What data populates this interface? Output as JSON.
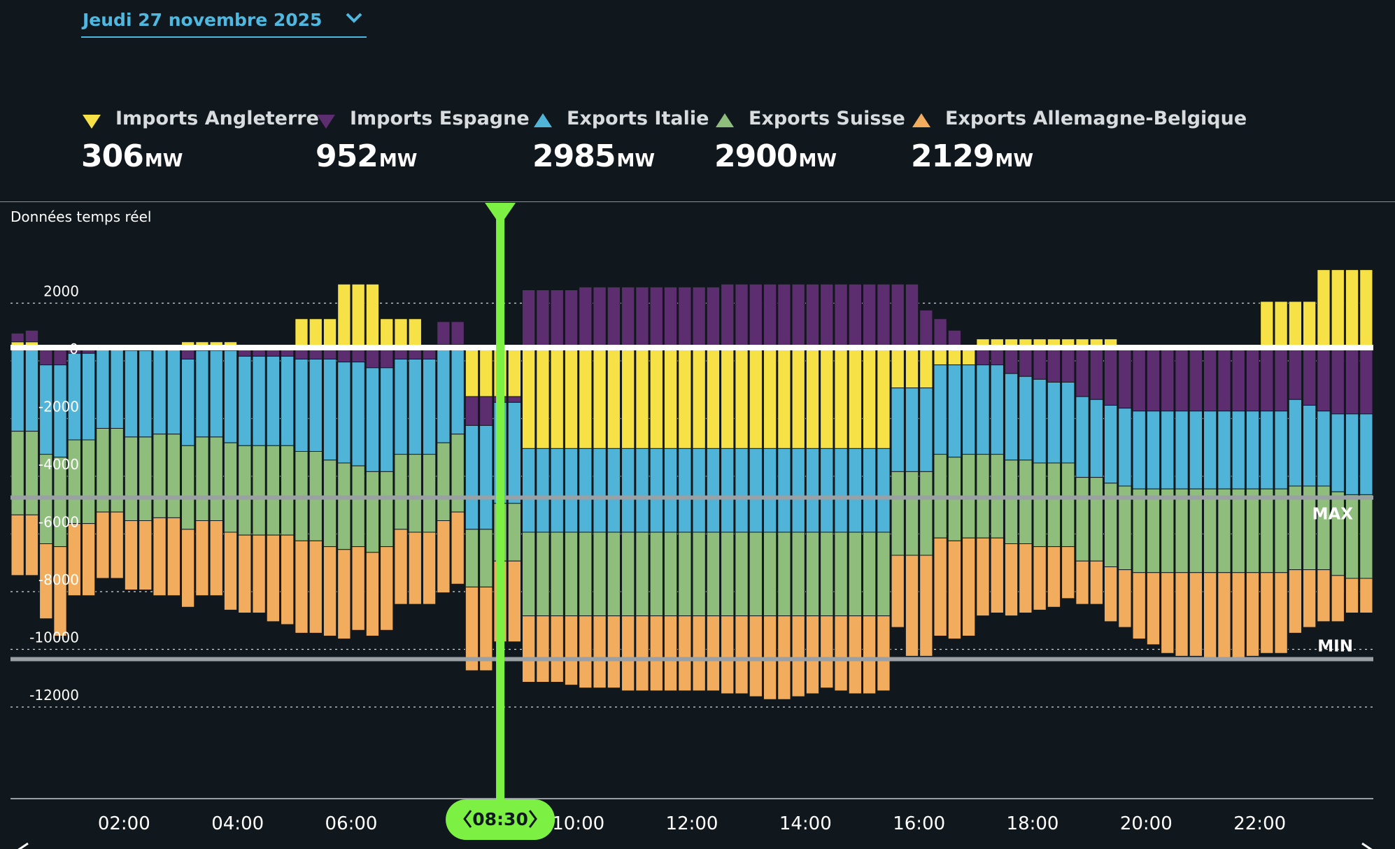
{
  "date_selector": {
    "label": "Jeudi 27 novembre 2025",
    "icon": "chevron-down-icon"
  },
  "legend": [
    {
      "name": "Imports Angleterre",
      "value": "306",
      "unit": "MW",
      "color": "#f6e146",
      "direction": "down"
    },
    {
      "name": "Imports Espagne",
      "value": "952",
      "unit": "MW",
      "color": "#5c2d6f",
      "direction": "down"
    },
    {
      "name": "Exports Italie",
      "value": "2985",
      "unit": "MW",
      "color": "#50b4d8",
      "direction": "up"
    },
    {
      "name": "Exports Suisse",
      "value": "2900",
      "unit": "MW",
      "color": "#8fbd7c",
      "direction": "up"
    },
    {
      "name": "Exports Allemagne-Belgique",
      "value": "2129",
      "unit": "MW",
      "color": "#f1ac5e",
      "direction": "up"
    }
  ],
  "realtime_label": "Données temps réel",
  "cursor": {
    "label": "08:30",
    "color": "#7cf144"
  },
  "chart_data": {
    "type": "bar",
    "stacked": true,
    "interval_minutes": 15,
    "bar_count": 96,
    "yticks": [
      2000,
      0,
      -2000,
      -4000,
      -6000,
      -8000,
      -10000,
      -12000
    ],
    "ylim": [
      -12500,
      2500
    ],
    "xticks": [
      "02:00",
      "04:00",
      "06:00",
      "10:00",
      "12:00",
      "14:00",
      "16:00",
      "18:00",
      "20:00",
      "22:00"
    ],
    "reference_lines": [
      {
        "label": "MAX",
        "value": -5200
      },
      {
        "label": "MIN",
        "value": -10800
      }
    ],
    "series": [
      {
        "name": "Imports Angleterre",
        "color": "#f6e146",
        "values": [
          200,
          200,
          100,
          0,
          0,
          0,
          0,
          0,
          0,
          0,
          0,
          0,
          200,
          200,
          200,
          200,
          0,
          0,
          0,
          0,
          1000,
          1000,
          1000,
          2200,
          2200,
          2200,
          1000,
          1000,
          1000,
          100,
          100,
          100,
          -1700,
          -1700,
          -1700,
          -1700,
          -3500,
          -3500,
          -3500,
          -3500,
          -3500,
          -3500,
          -3500,
          -3500,
          -3500,
          -3500,
          -3500,
          -3500,
          -3500,
          -3500,
          -3500,
          -3500,
          -3500,
          -3500,
          -3500,
          -3500,
          -3500,
          -3500,
          -3500,
          -3500,
          -3500,
          -3500,
          -1400,
          -1400,
          -1400,
          -600,
          -600,
          -600,
          300,
          300,
          300,
          300,
          300,
          300,
          300,
          300,
          300,
          300,
          100,
          100,
          100,
          100,
          0,
          0,
          0,
          0,
          0,
          0,
          1600,
          1600,
          1600,
          1600,
          2700,
          2700,
          2700,
          2700
        ]
      },
      {
        "name": "Imports Espagne",
        "color": "#5c2d6f",
        "values": [
          300,
          400,
          -600,
          -600,
          -200,
          -200,
          0,
          0,
          -100,
          -100,
          0,
          0,
          -400,
          -100,
          -100,
          -100,
          -300,
          -300,
          -300,
          -300,
          -400,
          -400,
          -400,
          -500,
          -500,
          -700,
          -700,
          -400,
          -400,
          -400,
          800,
          800,
          -1000,
          -1000,
          -200,
          -200,
          2000,
          2000,
          2000,
          2000,
          2100,
          2100,
          2100,
          2100,
          2100,
          2100,
          2100,
          2100,
          2100,
          2100,
          2200,
          2200,
          2200,
          2200,
          2200,
          2200,
          2200,
          2200,
          2200,
          2200,
          2200,
          2200,
          2200,
          2200,
          1300,
          1000,
          600,
          100,
          -600,
          -600,
          -900,
          -1000,
          -1100,
          -1200,
          -1200,
          -1700,
          -1800,
          -2000,
          -2100,
          -2200,
          -2200,
          -2200,
          -2200,
          -2200,
          -2200,
          -2200,
          -2200,
          -2200,
          -2200,
          -2200,
          -1800,
          -2000,
          -2200,
          -2300,
          -2300,
          -2300
        ]
      },
      {
        "name": "Exports Italie",
        "color": "#50b4d8",
        "values": [
          -2900,
          -2900,
          -3100,
          -3200,
          -3000,
          -3000,
          -2800,
          -2800,
          -3000,
          -3000,
          -3000,
          -3000,
          -3000,
          -3000,
          -3000,
          -3200,
          -3100,
          -3100,
          -3100,
          -3100,
          -3200,
          -3200,
          -3500,
          -3500,
          -3600,
          -3600,
          -3600,
          -3300,
          -3300,
          -3300,
          -3300,
          -3000,
          -3600,
          -3600,
          -3500,
          -3500,
          -2900,
          -2900,
          -2900,
          -2900,
          -2900,
          -2900,
          -2900,
          -2900,
          -2900,
          -2900,
          -2900,
          -2900,
          -2900,
          -2900,
          -2900,
          -2900,
          -2900,
          -2900,
          -2900,
          -2900,
          -2900,
          -2900,
          -2900,
          -2900,
          -2900,
          -2900,
          -2900,
          -2900,
          -2900,
          -3100,
          -3200,
          -3100,
          -3100,
          -3100,
          -3000,
          -2900,
          -2900,
          -2800,
          -2800,
          -2800,
          -2700,
          -2700,
          -2700,
          -2700,
          -2700,
          -2700,
          -2700,
          -2700,
          -2700,
          -2700,
          -2700,
          -2700,
          -2700,
          -2700,
          -3000,
          -2800,
          -2600,
          -2700,
          -2800,
          -2800
        ]
      },
      {
        "name": "Exports Suisse",
        "color": "#8fbd7c",
        "values": [
          -2900,
          -2900,
          -3100,
          -3100,
          -2900,
          -2900,
          -2900,
          -2900,
          -2900,
          -2900,
          -2900,
          -2900,
          -2900,
          -2900,
          -2900,
          -3100,
          -3100,
          -3100,
          -3100,
          -3100,
          -3100,
          -3100,
          -3000,
          -3000,
          -2800,
          -2800,
          -2600,
          -2600,
          -2700,
          -2700,
          -2700,
          -2700,
          -2000,
          -2000,
          -2000,
          -2000,
          -2900,
          -2900,
          -2900,
          -2900,
          -2900,
          -2900,
          -2900,
          -2900,
          -2900,
          -2900,
          -2900,
          -2900,
          -2900,
          -2900,
          -2900,
          -2900,
          -2900,
          -2900,
          -2900,
          -2900,
          -2900,
          -2900,
          -2900,
          -2900,
          -2900,
          -2900,
          -2900,
          -2900,
          -2900,
          -2900,
          -2900,
          -2900,
          -2900,
          -2900,
          -2900,
          -2900,
          -2900,
          -2900,
          -2900,
          -2900,
          -2900,
          -2900,
          -2900,
          -2900,
          -2900,
          -2900,
          -2900,
          -2900,
          -2900,
          -2900,
          -2900,
          -2900,
          -2900,
          -2900,
          -2900,
          -2900,
          -2900,
          -2900,
          -2900,
          -2900
        ]
      },
      {
        "name": "Exports Allemagne-Belgique",
        "color": "#f1ac5e",
        "values": [
          -2100,
          -2100,
          -2600,
          -3100,
          -2500,
          -2500,
          -2300,
          -2300,
          -2400,
          -2400,
          -2700,
          -2700,
          -2700,
          -2600,
          -2600,
          -2700,
          -2700,
          -2700,
          -3000,
          -3100,
          -3200,
          -3200,
          -3100,
          -3100,
          -2900,
          -2900,
          -2900,
          -2600,
          -2500,
          -2500,
          -2500,
          -2500,
          -2900,
          -2900,
          -2800,
          -2800,
          -2300,
          -2300,
          -2300,
          -2400,
          -2500,
          -2500,
          -2500,
          -2600,
          -2600,
          -2600,
          -2600,
          -2600,
          -2600,
          -2600,
          -2700,
          -2700,
          -2800,
          -2900,
          -2900,
          -2800,
          -2700,
          -2500,
          -2600,
          -2700,
          -2700,
          -2600,
          -2500,
          -3500,
          -3500,
          -3400,
          -3400,
          -3400,
          -2700,
          -2600,
          -2500,
          -2400,
          -2200,
          -2100,
          -1800,
          -1500,
          -1500,
          -1900,
          -2000,
          -2300,
          -2500,
          -2800,
          -2900,
          -2900,
          -3000,
          -3000,
          -3000,
          -2900,
          -2800,
          -2800,
          -2200,
          -2000,
          -1800,
          -1600,
          -1200,
          -1200
        ]
      }
    ]
  }
}
